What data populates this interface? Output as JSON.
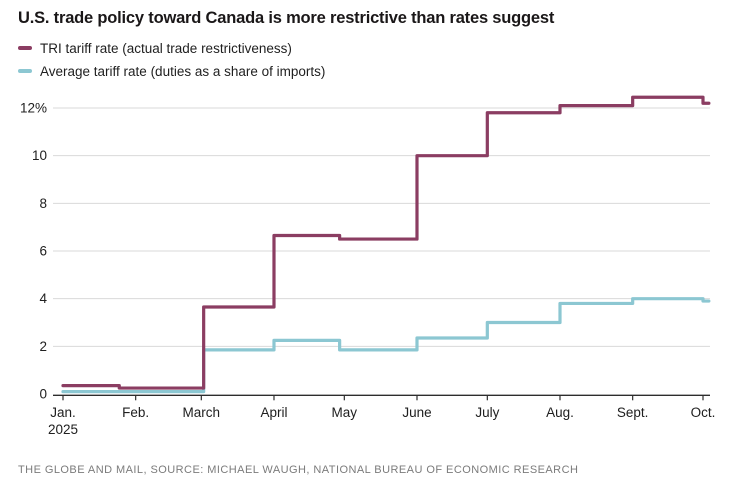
{
  "title": "U.S. trade policy toward Canada is more restrictive than rates suggest",
  "legend": [
    {
      "label": "TRI tariff rate (actual trade restrictiveness)",
      "color": "#8b3d62"
    },
    {
      "label": "Average tariff rate (duties as a share of imports)",
      "color": "#8cc7d2"
    }
  ],
  "footer": "THE GLOBE AND MAIL, SOURCE: MICHAEL WAUGH, NATIONAL BUREAU OF ECONOMIC RESEARCH",
  "chart_data": {
    "type": "line",
    "subtype": "step",
    "title": "U.S. trade policy toward Canada is more restrictive than rates suggest",
    "unit": "percent",
    "grid": true,
    "legend_position": "top-left",
    "colors": {
      "grid": "#d9d9d9",
      "axis": "#2d2d2d",
      "tick_label": "#202020"
    },
    "x_axis": {
      "label": "",
      "domain_days": [
        0,
        275.5
      ],
      "tick_days": [
        0,
        31,
        59,
        90,
        120,
        151,
        181,
        212,
        243,
        273
      ],
      "tick_labels": [
        "Jan.",
        "Feb.",
        "March",
        "April",
        "May",
        "June",
        "July",
        "Aug.",
        "Sept.",
        "Oct."
      ],
      "year_sublabel": "2025"
    },
    "y_axis": {
      "label": "",
      "range": [
        0,
        12
      ],
      "tick_values": [
        0,
        2,
        4,
        6,
        8,
        10,
        12
      ],
      "tick_labels": [
        "0",
        "2",
        "4",
        "6",
        "8",
        "10",
        "12%"
      ]
    },
    "series": [
      {
        "name": "Average tariff rate (duties as a share of imports)",
        "color": "#8cc7d2",
        "points_day_value": [
          [
            0,
            0.1
          ],
          [
            60,
            1.85
          ],
          [
            90,
            2.25
          ],
          [
            118,
            1.85
          ],
          [
            151,
            2.35
          ],
          [
            181,
            3.0
          ],
          [
            212,
            3.8
          ],
          [
            243,
            4.0
          ],
          [
            273,
            3.9
          ]
        ]
      },
      {
        "name": "TRI tariff rate (actual trade restrictiveness)",
        "color": "#8b3d62",
        "points_day_value": [
          [
            0,
            0.35
          ],
          [
            24,
            0.25
          ],
          [
            60,
            3.65
          ],
          [
            90,
            6.65
          ],
          [
            118,
            6.5
          ],
          [
            151,
            10.0
          ],
          [
            181,
            11.8
          ],
          [
            212,
            12.1
          ],
          [
            243,
            12.45
          ],
          [
            273,
            12.2
          ]
        ]
      }
    ]
  }
}
